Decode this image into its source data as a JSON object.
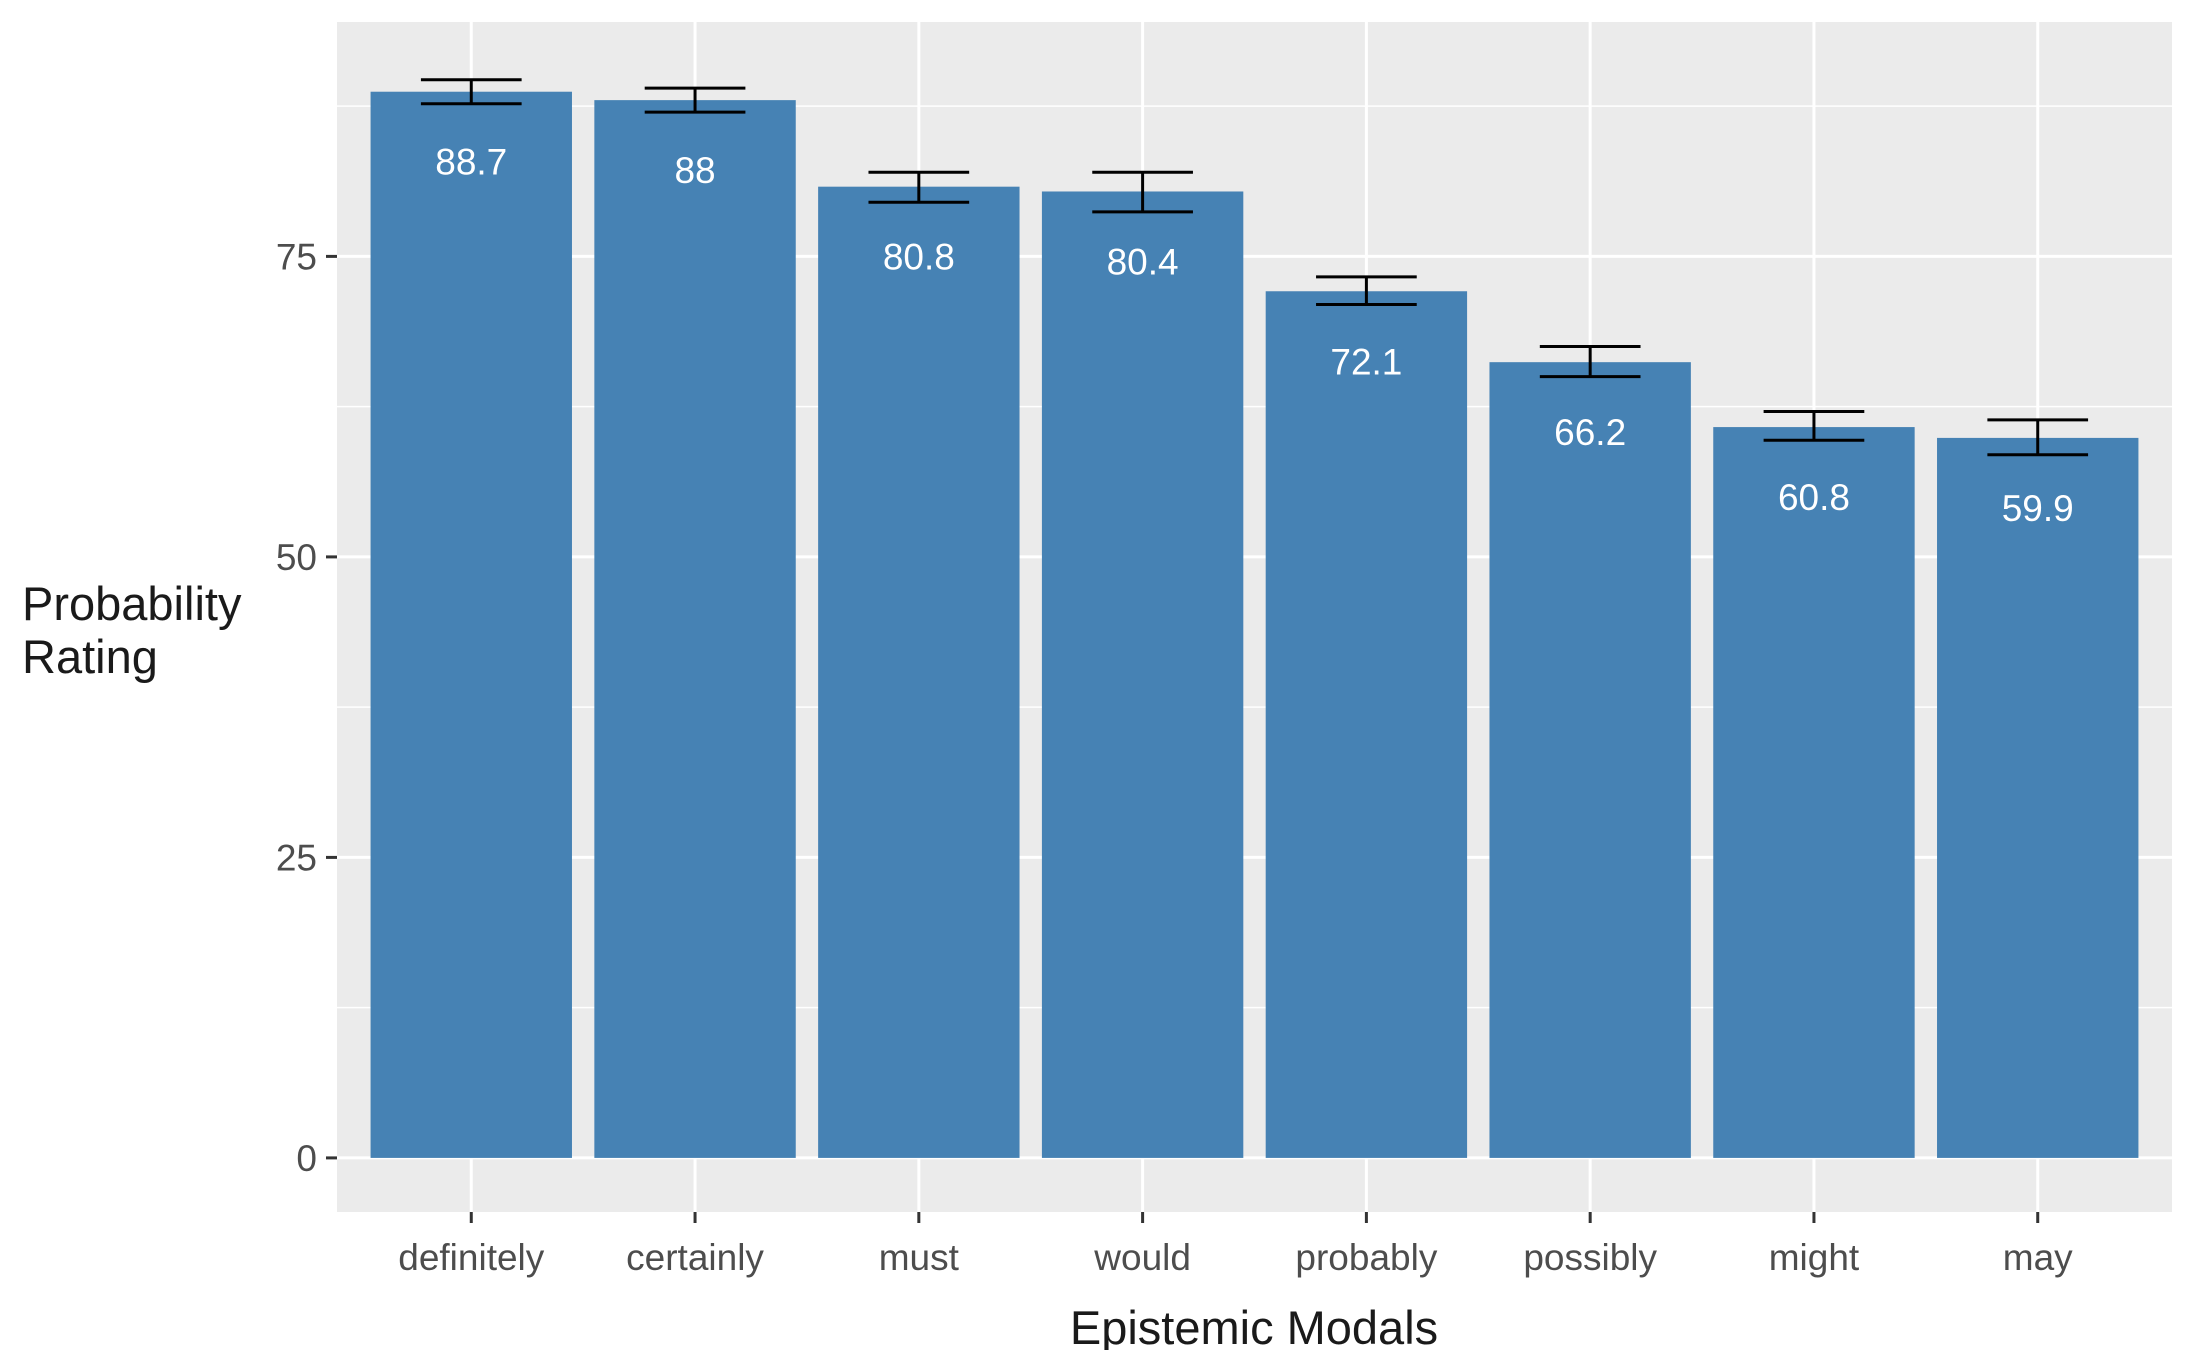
{
  "chart_data": {
    "type": "bar",
    "title": "",
    "xlabel": "Epistemic Modals",
    "ylabel_lines": [
      "Probability",
      "Rating"
    ],
    "categories": [
      "definitely",
      "certainly",
      "must",
      "would",
      "probably",
      "possibly",
      "might",
      "may"
    ],
    "values": [
      88.7,
      88,
      80.8,
      80.4,
      72.1,
      66.2,
      60.8,
      59.9
    ],
    "value_labels": [
      "88.7",
      "88",
      "80.8",
      "80.4",
      "72.1",
      "66.2",
      "60.8",
      "59.9"
    ],
    "error_bars": [
      {
        "low": 87.7,
        "high": 89.7
      },
      {
        "low": 87.0,
        "high": 89.0
      },
      {
        "low": 79.5,
        "high": 82.0
      },
      {
        "low": 78.7,
        "high": 82.0
      },
      {
        "low": 71.0,
        "high": 73.3
      },
      {
        "low": 65.0,
        "high": 67.5
      },
      {
        "low": 59.7,
        "high": 62.1
      },
      {
        "low": 58.5,
        "high": 61.4
      }
    ],
    "yticks": [
      0,
      25,
      50,
      75
    ],
    "ytick_labels": [
      "0",
      "25",
      "50",
      "75"
    ],
    "ylim": [
      -4.5,
      94.5
    ],
    "grid": true,
    "bar_color": "#4682b4",
    "panel_color": "#ebebeb"
  }
}
